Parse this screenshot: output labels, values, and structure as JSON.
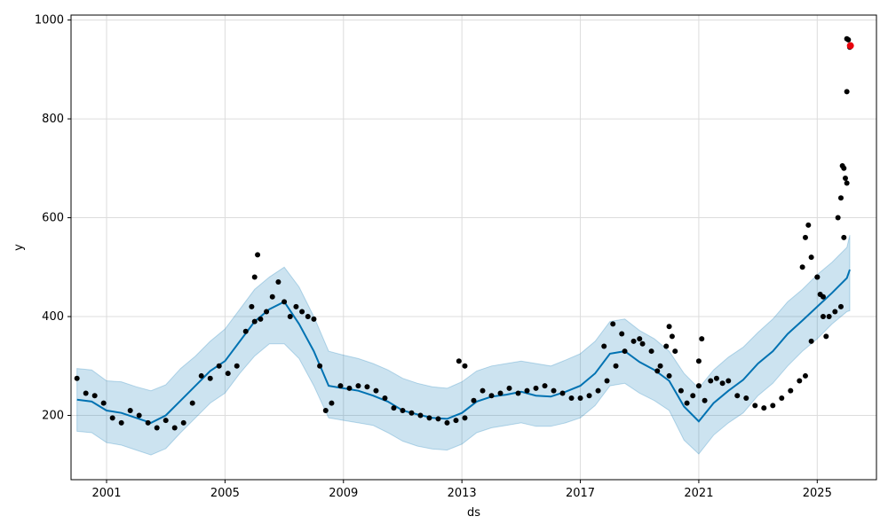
{
  "chart_data": {
    "type": "scatter",
    "title": "",
    "xlabel": "ds",
    "ylabel": "y",
    "xlim": [
      1999.8,
      2027.0
    ],
    "ylim": [
      70,
      1010
    ],
    "grid": true,
    "legend": "none",
    "x_ticks": [
      {
        "value": 2001,
        "label": "2001"
      },
      {
        "value": 2005,
        "label": "2005"
      },
      {
        "value": 2009,
        "label": "2009"
      },
      {
        "value": 2013,
        "label": "2013"
      },
      {
        "value": 2017,
        "label": "2017"
      },
      {
        "value": 2021,
        "label": "2021"
      },
      {
        "value": 2025,
        "label": "2025"
      }
    ],
    "y_ticks": [
      {
        "value": 200,
        "label": "200"
      },
      {
        "value": 400,
        "label": "400"
      },
      {
        "value": 600,
        "label": "600"
      },
      {
        "value": 800,
        "label": "800"
      },
      {
        "value": 1000,
        "label": "1000"
      }
    ],
    "colors": {
      "observed": "#000000",
      "forecast": "#0072B2",
      "interval": "#0072B2",
      "highlight": "#e8000b",
      "grid": "#dcdcdc"
    },
    "series": [
      {
        "kind": "interval",
        "x": [
          2000.0,
          2000.5,
          2001.0,
          2001.5,
          2002.0,
          2002.5,
          2003.0,
          2003.5,
          2004.0,
          2004.5,
          2005.0,
          2005.5,
          2006.0,
          2006.5,
          2007.0,
          2007.5,
          2008.0,
          2008.5,
          2009.0,
          2009.5,
          2010.0,
          2010.5,
          2011.0,
          2011.5,
          2012.0,
          2012.5,
          2013.0,
          2013.5,
          2014.0,
          2014.5,
          2015.0,
          2015.5,
          2016.0,
          2016.5,
          2017.0,
          2017.5,
          2018.0,
          2018.5,
          2019.0,
          2019.5,
          2020.0,
          2020.5,
          2021.0,
          2021.5,
          2022.0,
          2022.5,
          2023.0,
          2023.5,
          2024.0,
          2024.5,
          2025.0,
          2025.5,
          2026.0,
          2026.1
        ],
        "lower": [
          168,
          165,
          145,
          140,
          130,
          120,
          133,
          165,
          195,
          225,
          245,
          285,
          320,
          345,
          345,
          315,
          260,
          195,
          190,
          185,
          180,
          165,
          148,
          138,
          132,
          130,
          142,
          165,
          175,
          180,
          185,
          178,
          178,
          185,
          195,
          220,
          260,
          265,
          245,
          230,
          210,
          150,
          122,
          160,
          185,
          205,
          240,
          265,
          300,
          330,
          355,
          385,
          410,
          412
        ],
        "upper": [
          295,
          292,
          270,
          268,
          258,
          250,
          262,
          295,
          320,
          350,
          375,
          415,
          455,
          480,
          500,
          460,
          400,
          330,
          322,
          315,
          305,
          292,
          275,
          265,
          258,
          255,
          268,
          290,
          300,
          305,
          310,
          305,
          300,
          312,
          325,
          350,
          390,
          395,
          372,
          355,
          330,
          285,
          255,
          292,
          318,
          338,
          368,
          395,
          430,
          455,
          485,
          510,
          540,
          565
        ]
      },
      {
        "kind": "forecast",
        "x": [
          2000.0,
          2000.5,
          2001.0,
          2001.5,
          2002.0,
          2002.5,
          2003.0,
          2003.5,
          2004.0,
          2004.5,
          2005.0,
          2005.5,
          2006.0,
          2006.5,
          2007.0,
          2007.5,
          2008.0,
          2008.5,
          2009.0,
          2009.5,
          2010.0,
          2010.5,
          2011.0,
          2011.5,
          2012.0,
          2012.5,
          2013.0,
          2013.5,
          2014.0,
          2014.5,
          2015.0,
          2015.5,
          2016.0,
          2016.5,
          2017.0,
          2017.5,
          2018.0,
          2018.5,
          2019.0,
          2019.5,
          2020.0,
          2020.5,
          2021.0,
          2021.5,
          2022.0,
          2022.5,
          2023.0,
          2023.5,
          2024.0,
          2024.5,
          2025.0,
          2025.5,
          2026.0,
          2026.1
        ],
        "y": [
          232,
          228,
          210,
          205,
          195,
          185,
          200,
          230,
          260,
          290,
          310,
          350,
          390,
          415,
          430,
          385,
          330,
          260,
          255,
          250,
          240,
          228,
          210,
          202,
          195,
          193,
          205,
          228,
          238,
          242,
          248,
          240,
          238,
          248,
          260,
          285,
          325,
          330,
          308,
          292,
          270,
          218,
          188,
          225,
          250,
          272,
          305,
          330,
          365,
          392,
          420,
          448,
          478,
          495
        ]
      },
      {
        "kind": "observed",
        "x": [
          2000.0,
          2000.3,
          2000.6,
          2000.9,
          2001.2,
          2001.5,
          2001.8,
          2002.1,
          2002.4,
          2002.7,
          2003.0,
          2003.3,
          2003.6,
          2003.9,
          2004.2,
          2004.5,
          2004.8,
          2005.1,
          2005.4,
          2005.7,
          2006.0,
          2006.2,
          2006.4,
          2006.6,
          2006.8,
          2007.0,
          2007.2,
          2007.4,
          2007.6,
          2007.8,
          2008.0,
          2008.2,
          2008.4,
          2008.6,
          2008.9,
          2009.2,
          2009.5,
          2009.8,
          2010.1,
          2010.4,
          2010.7,
          2011.0,
          2011.3,
          2011.6,
          2011.9,
          2012.2,
          2012.5,
          2012.8,
          2013.1,
          2013.4,
          2013.7,
          2014.0,
          2014.3,
          2014.6,
          2014.9,
          2015.2,
          2015.5,
          2015.8,
          2016.1,
          2016.4,
          2016.7,
          2017.0,
          2017.3,
          2017.6,
          2017.9,
          2018.2,
          2018.5,
          2018.8,
          2019.1,
          2019.4,
          2019.7,
          2020.0,
          2020.2,
          2020.4,
          2020.6,
          2020.8,
          2021.0,
          2021.2,
          2021.4,
          2021.6,
          2021.8,
          2022.0,
          2022.3,
          2022.6,
          2022.9,
          2023.2,
          2023.5,
          2023.8,
          2024.1,
          2024.4,
          2024.6,
          2024.8,
          2025.0,
          2025.2,
          2025.4,
          2025.6,
          2025.8,
          2025.9,
          2026.0,
          2026.05,
          2026.1
        ],
        "y": [
          275,
          245,
          240,
          225,
          195,
          185,
          210,
          200,
          185,
          175,
          190,
          175,
          185,
          225,
          280,
          275,
          300,
          285,
          300,
          370,
          390,
          395,
          410,
          440,
          470,
          430,
          400,
          420,
          410,
          400,
          395,
          300,
          210,
          225,
          260,
          255,
          260,
          258,
          250,
          235,
          215,
          210,
          205,
          200,
          195,
          193,
          185,
          190,
          195,
          230,
          250,
          240,
          245,
          255,
          245,
          250,
          255,
          260,
          250,
          245,
          235,
          235,
          240,
          250,
          270,
          300,
          330,
          350,
          345,
          330,
          300,
          280,
          330,
          250,
          225,
          240,
          260,
          230,
          270,
          275,
          265,
          270,
          240,
          235,
          220,
          215,
          220,
          235,
          250,
          270,
          280,
          350,
          480,
          440,
          400,
          410,
          420,
          560,
          670,
          960,
          945
        ]
      },
      {
        "kind": "observed-extra",
        "x": [
          2005.9,
          2006.0,
          2006.1,
          2012.9,
          2013.1,
          2017.8,
          2018.1,
          2018.4,
          2019.0,
          2019.6,
          2019.9,
          2020.0,
          2020.1,
          2021.0,
          2021.1,
          2024.5,
          2024.6,
          2024.7,
          2024.8,
          2025.0,
          2025.1,
          2025.2,
          2025.3,
          2025.7,
          2025.8,
          2025.85,
          2025.9,
          2025.95,
          2026.0,
          2026.0
        ],
        "y": [
          420,
          480,
          525,
          310,
          300,
          340,
          385,
          365,
          355,
          290,
          340,
          380,
          360,
          310,
          355,
          500,
          560,
          585,
          520,
          480,
          445,
          400,
          360,
          600,
          640,
          705,
          700,
          680,
          855,
          962
        ]
      },
      {
        "kind": "highlight",
        "x": [
          2026.12
        ],
        "y": [
          948
        ]
      }
    ]
  }
}
